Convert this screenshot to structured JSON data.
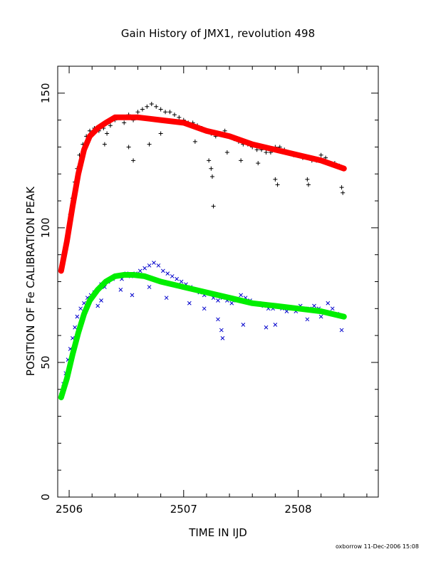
{
  "chart_data": {
    "type": "scatter",
    "title": "Gain History of JMX1, revolution 498",
    "xlabel": "TIME IN IJD",
    "ylabel": "POSITION OF Fe CALIBRATION PEAK",
    "xlim": [
      2505.9,
      2508.7
    ],
    "ylim": [
      0,
      160
    ],
    "x_ticks": [
      "2506",
      "2507",
      "2508"
    ],
    "y_ticks": [
      "0",
      "50",
      "100",
      "150"
    ],
    "grid": false,
    "series": [
      {
        "marker": "plus",
        "color": "#000000",
        "points": [
          [
            2505.93,
            84
          ],
          [
            2505.95,
            88
          ],
          [
            2505.97,
            93
          ],
          [
            2505.99,
            99
          ],
          [
            2506.01,
            105
          ],
          [
            2506.03,
            111
          ],
          [
            2506.05,
            117
          ],
          [
            2506.07,
            122
          ],
          [
            2506.09,
            127
          ],
          [
            2506.12,
            131
          ],
          [
            2506.15,
            134
          ],
          [
            2506.18,
            136
          ],
          [
            2506.22,
            137
          ],
          [
            2506.26,
            136
          ],
          [
            2506.3,
            137
          ],
          [
            2506.33,
            135
          ],
          [
            2506.36,
            138
          ],
          [
            2506.4,
            140
          ],
          [
            2506.44,
            141
          ],
          [
            2506.48,
            139
          ],
          [
            2506.52,
            142
          ],
          [
            2506.56,
            140
          ],
          [
            2506.6,
            143
          ],
          [
            2506.64,
            144
          ],
          [
            2506.68,
            145
          ],
          [
            2506.72,
            146
          ],
          [
            2506.76,
            145
          ],
          [
            2506.8,
            144
          ],
          [
            2506.84,
            143
          ],
          [
            2506.88,
            143
          ],
          [
            2506.92,
            142
          ],
          [
            2506.96,
            141
          ],
          [
            2507.0,
            140
          ],
          [
            2507.04,
            139
          ],
          [
            2507.08,
            139
          ],
          [
            2507.12,
            138
          ],
          [
            2507.16,
            137
          ],
          [
            2507.2,
            136
          ],
          [
            2507.24,
            135
          ],
          [
            2507.28,
            134
          ],
          [
            2507.32,
            135
          ],
          [
            2507.36,
            136
          ],
          [
            2507.4,
            134
          ],
          [
            2507.44,
            133
          ],
          [
            2507.48,
            132
          ],
          [
            2507.52,
            131
          ],
          [
            2507.56,
            131
          ],
          [
            2507.6,
            130
          ],
          [
            2507.64,
            129
          ],
          [
            2507.68,
            129
          ],
          [
            2507.72,
            128
          ],
          [
            2507.76,
            128
          ],
          [
            2507.8,
            130
          ],
          [
            2507.84,
            130
          ],
          [
            2507.88,
            129
          ],
          [
            2507.92,
            128
          ],
          [
            2507.96,
            127
          ],
          [
            2508.0,
            127
          ],
          [
            2508.04,
            126
          ],
          [
            2508.08,
            126
          ],
          [
            2508.12,
            125
          ],
          [
            2508.16,
            125
          ],
          [
            2508.2,
            127
          ],
          [
            2508.24,
            126
          ],
          [
            2508.28,
            124
          ],
          [
            2508.32,
            124
          ],
          [
            2508.36,
            123
          ],
          [
            2508.4,
            122
          ],
          [
            2506.31,
            131
          ],
          [
            2506.52,
            130
          ],
          [
            2506.56,
            125
          ],
          [
            2506.7,
            131
          ],
          [
            2506.8,
            135
          ],
          [
            2507.1,
            132
          ],
          [
            2507.22,
            125
          ],
          [
            2507.24,
            122
          ],
          [
            2507.25,
            119
          ],
          [
            2507.26,
            108
          ],
          [
            2507.38,
            128
          ],
          [
            2507.5,
            125
          ],
          [
            2507.65,
            124
          ],
          [
            2507.8,
            118
          ],
          [
            2507.82,
            116
          ],
          [
            2508.08,
            118
          ],
          [
            2508.09,
            116
          ],
          [
            2508.38,
            115
          ],
          [
            2508.39,
            113
          ]
        ]
      },
      {
        "marker": "cross",
        "color": "#0000cc",
        "points": [
          [
            2505.93,
            38
          ],
          [
            2505.95,
            42
          ],
          [
            2505.97,
            46
          ],
          [
            2505.99,
            51
          ],
          [
            2506.01,
            55
          ],
          [
            2506.03,
            59
          ],
          [
            2506.05,
            63
          ],
          [
            2506.07,
            67
          ],
          [
            2506.1,
            70
          ],
          [
            2506.13,
            72
          ],
          [
            2506.16,
            74
          ],
          [
            2506.19,
            75
          ],
          [
            2506.22,
            76
          ],
          [
            2506.25,
            77
          ],
          [
            2506.28,
            79
          ],
          [
            2506.31,
            78
          ],
          [
            2506.34,
            80
          ],
          [
            2506.38,
            81
          ],
          [
            2506.42,
            82
          ],
          [
            2506.46,
            81
          ],
          [
            2506.5,
            83
          ],
          [
            2506.54,
            82
          ],
          [
            2506.58,
            83
          ],
          [
            2506.62,
            84
          ],
          [
            2506.66,
            85
          ],
          [
            2506.7,
            86
          ],
          [
            2506.74,
            87
          ],
          [
            2506.78,
            86
          ],
          [
            2506.82,
            84
          ],
          [
            2506.86,
            83
          ],
          [
            2506.9,
            82
          ],
          [
            2506.94,
            81
          ],
          [
            2506.98,
            80
          ],
          [
            2507.02,
            79
          ],
          [
            2507.06,
            78
          ],
          [
            2507.1,
            77
          ],
          [
            2507.14,
            76
          ],
          [
            2507.18,
            75
          ],
          [
            2507.22,
            76
          ],
          [
            2507.26,
            74
          ],
          [
            2507.3,
            73
          ],
          [
            2507.34,
            74
          ],
          [
            2507.38,
            73
          ],
          [
            2507.42,
            72
          ],
          [
            2507.46,
            73
          ],
          [
            2507.5,
            75
          ],
          [
            2507.54,
            74
          ],
          [
            2507.58,
            73
          ],
          [
            2507.62,
            72
          ],
          [
            2507.66,
            72
          ],
          [
            2507.7,
            71
          ],
          [
            2507.74,
            70
          ],
          [
            2507.78,
            70
          ],
          [
            2507.82,
            71
          ],
          [
            2507.86,
            70
          ],
          [
            2507.9,
            69
          ],
          [
            2507.94,
            70
          ],
          [
            2507.98,
            69
          ],
          [
            2508.02,
            71
          ],
          [
            2508.06,
            70
          ],
          [
            2508.1,
            70
          ],
          [
            2508.14,
            71
          ],
          [
            2508.18,
            70
          ],
          [
            2508.22,
            69
          ],
          [
            2508.26,
            72
          ],
          [
            2508.3,
            70
          ],
          [
            2508.34,
            68
          ],
          [
            2508.38,
            67
          ],
          [
            2506.25,
            71
          ],
          [
            2506.28,
            73
          ],
          [
            2506.45,
            77
          ],
          [
            2506.55,
            75
          ],
          [
            2506.7,
            78
          ],
          [
            2506.85,
            74
          ],
          [
            2507.05,
            72
          ],
          [
            2507.18,
            70
          ],
          [
            2507.3,
            66
          ],
          [
            2507.33,
            62
          ],
          [
            2507.34,
            59
          ],
          [
            2507.52,
            64
          ],
          [
            2507.72,
            63
          ],
          [
            2507.8,
            64
          ],
          [
            2508.08,
            66
          ],
          [
            2508.2,
            67
          ],
          [
            2508.38,
            62
          ]
        ]
      },
      {
        "type": "line",
        "color": "#ff0000",
        "points": [
          [
            2505.93,
            84
          ],
          [
            2505.98,
            95
          ],
          [
            2506.03,
            108
          ],
          [
            2506.08,
            120
          ],
          [
            2506.13,
            129
          ],
          [
            2506.18,
            134
          ],
          [
            2506.25,
            137
          ],
          [
            2506.32,
            139
          ],
          [
            2506.4,
            141
          ],
          [
            2506.5,
            141
          ],
          [
            2506.6,
            141
          ],
          [
            2506.7,
            140.5
          ],
          [
            2506.8,
            140
          ],
          [
            2506.9,
            139.5
          ],
          [
            2507.0,
            139
          ],
          [
            2507.2,
            136
          ],
          [
            2507.4,
            134
          ],
          [
            2507.6,
            131
          ],
          [
            2507.8,
            129
          ],
          [
            2508.0,
            127
          ],
          [
            2508.2,
            125
          ],
          [
            2508.4,
            122
          ]
        ]
      },
      {
        "type": "line",
        "color": "#00ee00",
        "points": [
          [
            2505.93,
            37
          ],
          [
            2505.98,
            44
          ],
          [
            2506.03,
            53
          ],
          [
            2506.08,
            61
          ],
          [
            2506.13,
            68
          ],
          [
            2506.18,
            73
          ],
          [
            2506.25,
            77
          ],
          [
            2506.32,
            80
          ],
          [
            2506.4,
            82
          ],
          [
            2506.48,
            82.5
          ],
          [
            2506.56,
            82.5
          ],
          [
            2506.66,
            82
          ],
          [
            2506.8,
            80
          ],
          [
            2507.0,
            78
          ],
          [
            2507.2,
            76
          ],
          [
            2507.4,
            74
          ],
          [
            2507.6,
            72
          ],
          [
            2507.8,
            71
          ],
          [
            2508.0,
            70
          ],
          [
            2508.2,
            69
          ],
          [
            2508.4,
            67
          ]
        ]
      }
    ]
  },
  "footer": "oxborrow 11-Dec-2006 15:08"
}
